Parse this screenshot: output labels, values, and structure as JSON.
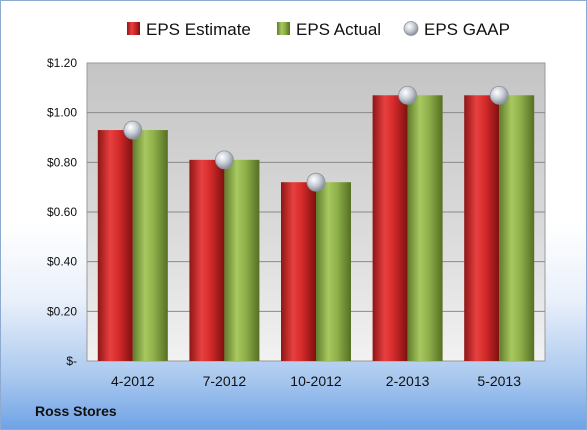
{
  "company": "Ross Stores",
  "colors": {
    "estimate": "#d42a2a",
    "actual": "#8fb04a",
    "gaap": "#c0c6cf"
  },
  "chart_data": {
    "type": "bar",
    "categories": [
      "4-2012",
      "7-2012",
      "10-2012",
      "2-2013",
      "5-2013"
    ],
    "series": [
      {
        "name": "EPS Estimate",
        "values": [
          0.93,
          0.81,
          0.72,
          1.07,
          1.07
        ]
      },
      {
        "name": "EPS Actual",
        "values": [
          0.93,
          0.81,
          0.72,
          1.07,
          1.07
        ]
      },
      {
        "name": "EPS GAAP",
        "type": "scatter",
        "values": [
          0.93,
          0.81,
          0.72,
          1.07,
          1.07
        ]
      }
    ],
    "yticks": [
      0,
      0.2,
      0.4,
      0.6,
      0.8,
      1.0,
      1.2
    ],
    "ytick_labels": [
      "$-",
      "$0.20",
      "$0.40",
      "$0.60",
      "$0.80",
      "$1.00",
      "$1.20"
    ],
    "ylim": [
      0,
      1.2
    ],
    "grid": true,
    "legend": "top"
  }
}
